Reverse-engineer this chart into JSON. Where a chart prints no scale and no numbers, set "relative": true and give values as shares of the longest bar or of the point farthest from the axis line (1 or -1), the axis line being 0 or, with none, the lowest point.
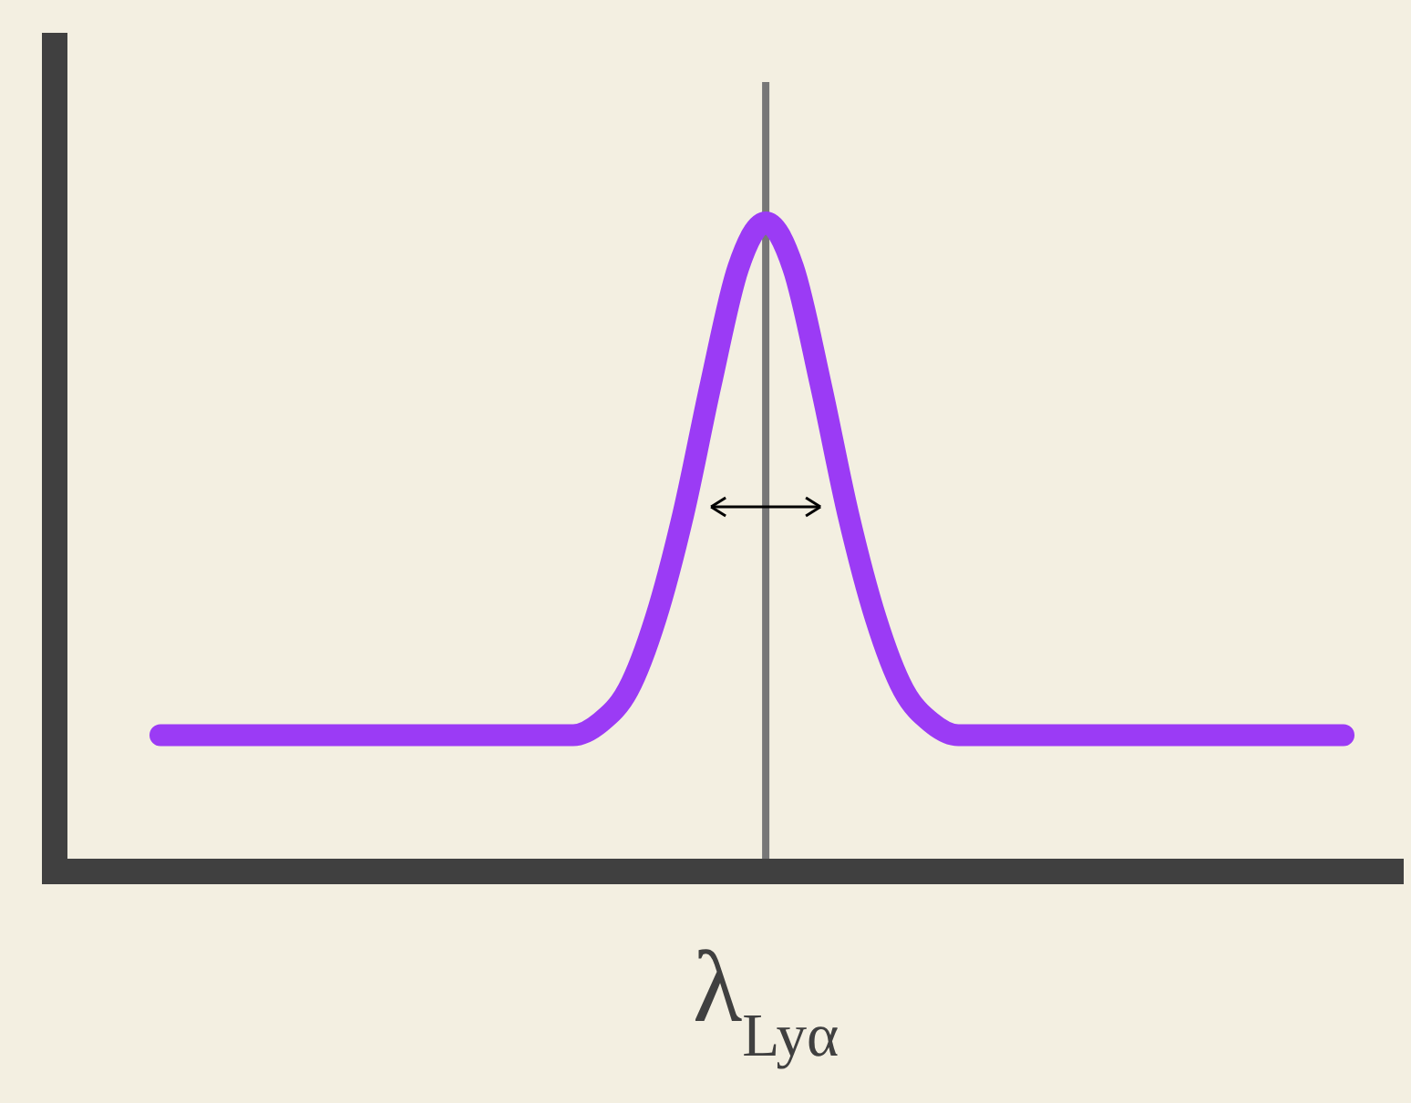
{
  "chart_data": {
    "type": "line",
    "relative": true,
    "categories": [
      null,
      null,
      null,
      null,
      null,
      null,
      null,
      null,
      null,
      null,
      null,
      null,
      null,
      null,
      null,
      null,
      null,
      null,
      null,
      null,
      null,
      null,
      null,
      null,
      null,
      null,
      null,
      null,
      null,
      null,
      null,
      null,
      null,
      null,
      null,
      null,
      null,
      null,
      null,
      null,
      null,
      null,
      null,
      null
    ],
    "series": [
      {
        "color": "#9b3bf5",
        "values": [
          0.21,
          0.21,
          0.21,
          0.21,
          0.21,
          0.21,
          0.21,
          0.21,
          0.21,
          0.21,
          0.21,
          0.21,
          0.21,
          0.21,
          0.21,
          0.21,
          0.23,
          0.28,
          0.39,
          0.55,
          0.75,
          0.93,
          1,
          0.93,
          0.75,
          0.55,
          0.39,
          0.28,
          0.23,
          0.21,
          0.21,
          0.21,
          0.21,
          0.21,
          0.21,
          0.21,
          0.21,
          0.21,
          0.21,
          0.21,
          0.21,
          0.21,
          0.21,
          0.21
        ]
      }
    ],
    "xlabel": "λ$_{Lyα}$",
    "marker": "none",
    "line_style": "solid"
  }
}
